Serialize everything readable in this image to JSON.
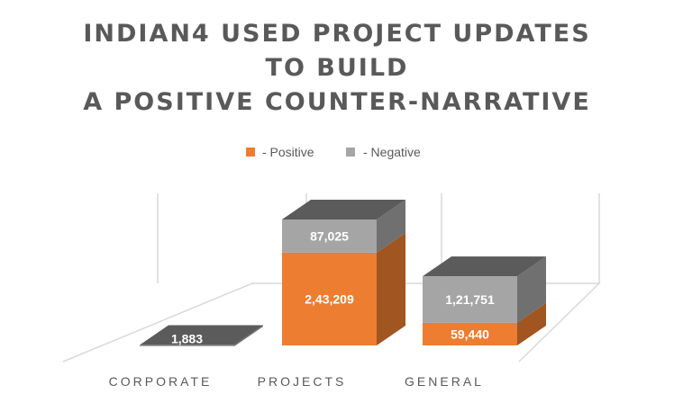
{
  "chart_data": {
    "type": "bar",
    "stacked": true,
    "three_d": true,
    "title_lines": [
      "INDIAN4 USED PROJECT UPDATES",
      "TO BUILD",
      "A POSITIVE COUNTER-NARRATIVE"
    ],
    "categories": [
      "CORPORATE",
      "PROJECTS",
      "GENERAL"
    ],
    "series": [
      {
        "name": "- Positive",
        "values": [
          0,
          243209,
          59440
        ],
        "labels": [
          "",
          "2,43,209",
          "59,440"
        ]
      },
      {
        "name": "- Negative",
        "values": [
          1883,
          87025,
          121751
        ],
        "labels": [
          "1,883",
          "87,025",
          "1,21,751"
        ]
      }
    ],
    "legend": "top-center",
    "grid": false
  },
  "colors": {
    "positive": "#ED7D31",
    "negative": "#A5A5A5",
    "title": "#595959",
    "axis_text": "#595959",
    "grid_wall": "#D9D9D9"
  }
}
